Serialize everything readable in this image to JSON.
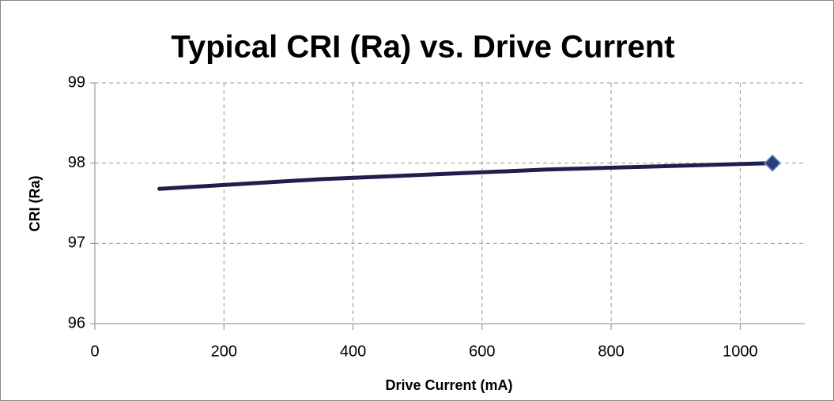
{
  "chart_data": {
    "type": "line",
    "title": "Typical CRI (Ra) vs. Drive Current",
    "x_label": "Drive Current (mA)",
    "y_label": "CRI (Ra)",
    "series": [
      {
        "name": "CRI",
        "color": "#1f1f4f",
        "marker_color": "#2c3e75",
        "x": [
          100,
          350,
          700,
          1050
        ],
        "values": [
          97.68,
          97.8,
          97.92,
          98.0
        ]
      }
    ],
    "xlim": [
      0,
      1100
    ],
    "xticks": [
      0,
      200,
      400,
      600,
      800,
      1000
    ],
    "ylim": [
      96,
      99
    ],
    "yticks": [
      96,
      97,
      98,
      99
    ],
    "grid": true
  }
}
